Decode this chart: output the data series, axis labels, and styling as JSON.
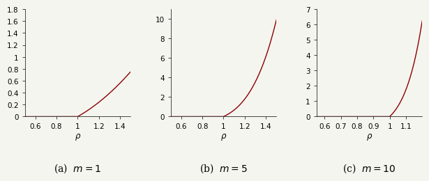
{
  "subplots": [
    {
      "m": 1,
      "xlim": [
        0.5,
        1.5
      ],
      "ylim": [
        0,
        1.8
      ],
      "xticks": [
        0.6,
        0.8,
        1.0,
        1.2,
        1.4
      ],
      "yticks": [
        0,
        0.2,
        0.4,
        0.6,
        0.8,
        1.0,
        1.2,
        1.4,
        1.6,
        1.8
      ],
      "xlabel": "ρ",
      "label": "(a)  $m = 1$"
    },
    {
      "m": 5,
      "xlim": [
        0.5,
        1.5
      ],
      "ylim": [
        0,
        11
      ],
      "xticks": [
        0.6,
        0.8,
        1.0,
        1.2,
        1.4
      ],
      "yticks": [
        0,
        2,
        4,
        6,
        8,
        10
      ],
      "xlabel": "ρ",
      "label": "(b)  $m = 5$"
    },
    {
      "m": 10,
      "xlim": [
        0.55,
        1.2
      ],
      "ylim": [
        0,
        7
      ],
      "xticks": [
        0.6,
        0.7,
        0.8,
        0.9,
        1.0,
        1.1
      ],
      "yticks": [
        0,
        1,
        2,
        3,
        4,
        5,
        6,
        7
      ],
      "xlabel": "ρ",
      "label": "(c)  $m = 10$"
    }
  ],
  "line_color": "#8B0000",
  "line_width": 1.0,
  "bg_color": "#f5f5f0",
  "tick_label_size": 7.5,
  "xlabel_size": 8.5,
  "caption_size": 10
}
